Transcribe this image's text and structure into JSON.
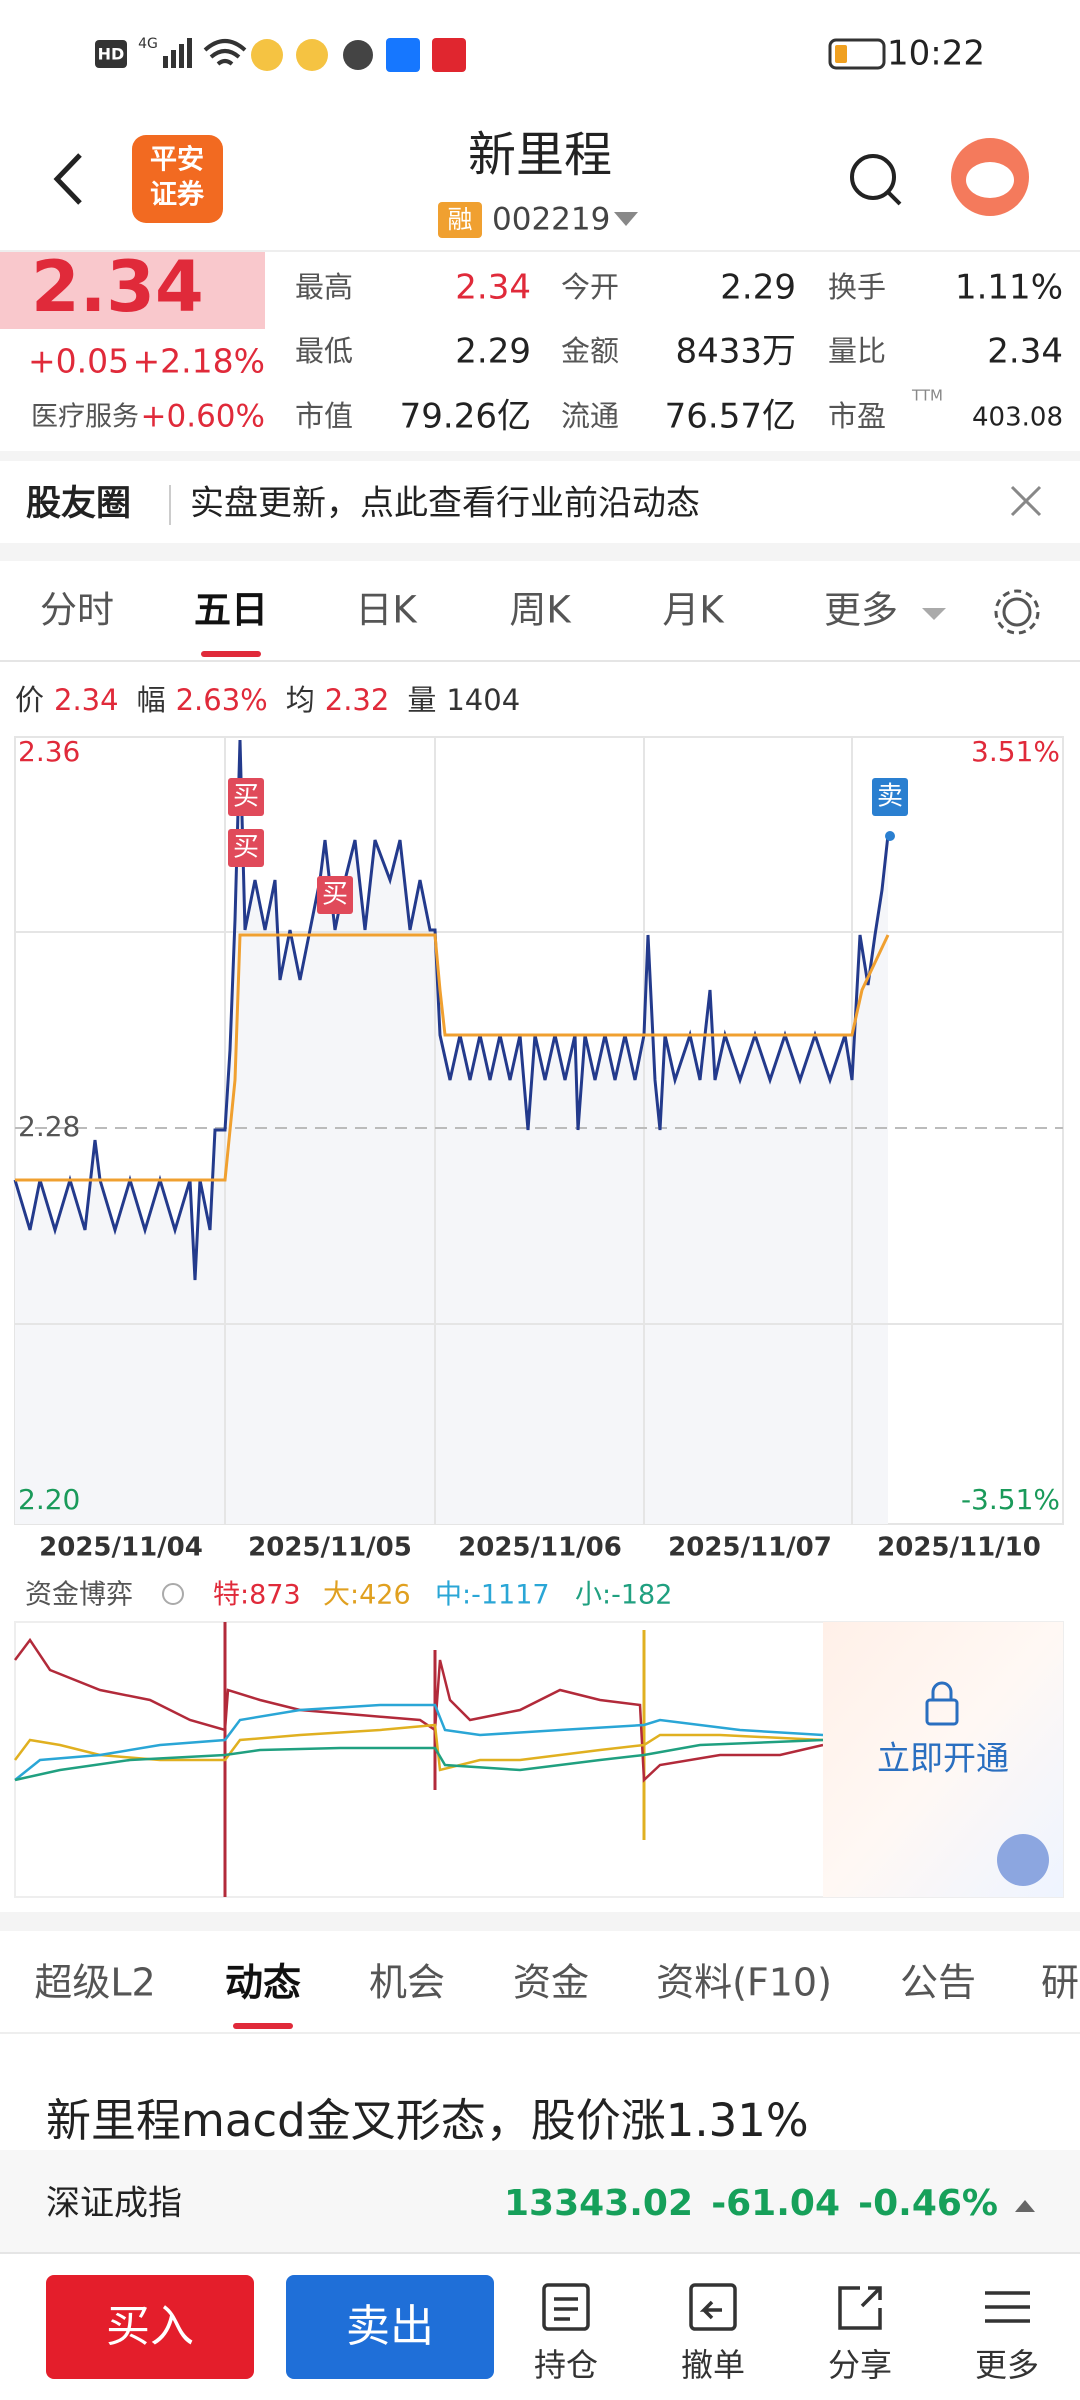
{
  "status_bar": {
    "hd": "HD",
    "network": "4G",
    "time": "10:22"
  },
  "header": {
    "logo_lines": [
      "平安",
      "证券"
    ],
    "title": "新里程",
    "badge": "融",
    "code": "002219"
  },
  "quote": {
    "price": "2.34",
    "change": "+0.05",
    "change_pct": "+2.18%",
    "sector": "医疗服务",
    "sector_pct": "+0.60%",
    "ttm": "TTM",
    "stats": [
      {
        "label": "最高",
        "value": "2.34"
      },
      {
        "label": "今开",
        "value": "2.29"
      },
      {
        "label": "换手",
        "value": "1.11%"
      },
      {
        "label": "最低",
        "value": "2.29"
      },
      {
        "label": "金额",
        "value": "8433万"
      },
      {
        "label": "量比",
        "value": "2.34"
      },
      {
        "label": "市值",
        "value": "79.26亿"
      },
      {
        "label": "流通",
        "value": "76.57亿"
      },
      {
        "label": "市盈",
        "value": "403.08"
      }
    ]
  },
  "banner": {
    "label": "股友圈",
    "text": "实盘更新，点此查看行业前沿动态"
  },
  "chart_tabs": [
    "分时",
    "五日",
    "日K",
    "周K",
    "月K",
    "更多"
  ],
  "chart_info": [
    {
      "label": "价",
      "value": "2.34"
    },
    {
      "label": "幅",
      "value": "2.63%"
    },
    {
      "label": "均",
      "value": "2.32"
    },
    {
      "label": "量",
      "value": "1404"
    }
  ],
  "chart_axis": {
    "top": "2.36",
    "middle": "2.28",
    "bottom": "2.20",
    "top_pct": "3.51%",
    "bottom_pct": "-3.51%",
    "dates": [
      "2025/11/04",
      "2025/11/05",
      "2025/11/06",
      "2025/11/07",
      "2025/11/10"
    ]
  },
  "markers": {
    "buy": "买",
    "sell": "卖"
  },
  "fund": {
    "title": "资金博弈",
    "items": [
      "特:873",
      "大:426",
      "中:-1117",
      "小:-182"
    ],
    "unlock": "立即开通"
  },
  "info_tabs": [
    "超级L2",
    "动态",
    "机会",
    "资金",
    "资料(F10)",
    "公告",
    "研"
  ],
  "news": "新里程macd金叉形态，股价涨1.31%",
  "index": {
    "name": "深证成指",
    "value": "13343.02",
    "change": "-61.04",
    "pct": "-0.46%"
  },
  "nav": {
    "buy": "买入",
    "sell": "卖出",
    "items": [
      "持仓",
      "撤单",
      "分享",
      "更多"
    ]
  }
}
